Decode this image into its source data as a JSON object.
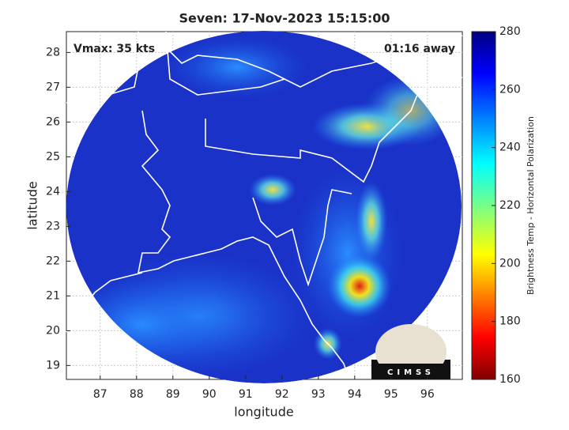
{
  "chart_data": {
    "type": "map",
    "title": "Seven: 17-Nov-2023 15:15:00",
    "annotations": [
      "Vmax: 35 kts",
      "01:16 away"
    ],
    "xlabel": "longitude",
    "ylabel": "latitude",
    "xlim": [
      86.07,
      96.96
    ],
    "xticks": [
      87,
      88,
      89,
      90,
      91,
      92,
      93,
      94,
      95,
      96
    ],
    "ylim": [
      18.6,
      28.6
    ],
    "yticks": [
      19,
      20,
      21,
      22,
      23,
      24,
      25,
      26,
      27,
      28
    ],
    "grid": true,
    "colorbar": {
      "label": "Brightness Temp - Horizontal Polarization",
      "lim": [
        160,
        280
      ],
      "ticks": [
        160,
        180,
        200,
        220,
        240,
        260,
        280
      ]
    },
    "logo": "CIMSS"
  }
}
